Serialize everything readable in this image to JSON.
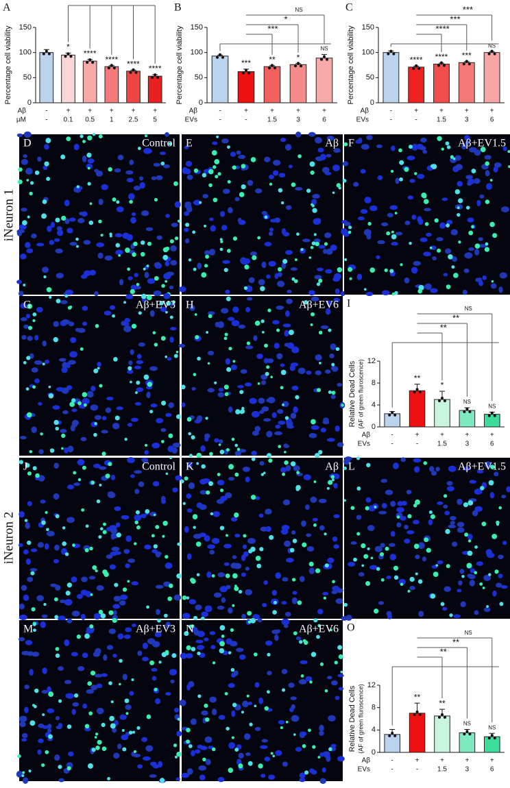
{
  "chart_data": [
    {
      "type": "bar",
      "panel": "A",
      "ylabel": "Percentage cell viability",
      "categories": [
        "-",
        "+",
        "+",
        "+",
        "+",
        "+"
      ],
      "x_rows": [
        {
          "name": "Aβ",
          "labels": [
            "-",
            "+",
            "+",
            "+",
            "+",
            "+"
          ]
        },
        {
          "name": "µM",
          "labels": [
            "-",
            "0.1",
            "0.5",
            "1",
            "2.5",
            "5"
          ]
        }
      ],
      "values": [
        100,
        95,
        83,
        72,
        63,
        53
      ],
      "errors": [
        6,
        4,
        3,
        2,
        2,
        3
      ],
      "colors": [
        "#bcd3ee",
        "#fbd6d6",
        "#f7a9a9",
        "#f27a7a",
        "#ee4545",
        "#e82020"
      ],
      "bar_annotations": [
        null,
        "*",
        "****",
        "****",
        "****",
        "****"
      ],
      "ylim": [
        0,
        150
      ],
      "yticks": [
        0,
        50,
        100,
        150
      ]
    },
    {
      "type": "bar",
      "panel": "B",
      "ylabel": "Percentage cell viability",
      "categories": [
        "-",
        "+",
        "+",
        "+",
        "+"
      ],
      "x_rows": [
        {
          "name": "Aβ",
          "labels": [
            "-",
            "+",
            "+",
            "+",
            "+"
          ]
        },
        {
          "name": "EVs",
          "labels": [
            "-",
            "-",
            "1.5",
            "3",
            "6"
          ]
        }
      ],
      "values": [
        93,
        62,
        72,
        76,
        89
      ],
      "errors": [
        2,
        5,
        2,
        2,
        7
      ],
      "colors": [
        "#bcd3ee",
        "#ee1111",
        "#f26060",
        "#f58a8a",
        "#f7a9a9"
      ],
      "bar_annotations": [
        null,
        "***",
        "**",
        "*",
        "NS"
      ],
      "bracket_labels": [
        "NS",
        "*",
        "***"
      ],
      "ylim": [
        0,
        150
      ],
      "yticks": [
        0,
        50,
        100,
        150
      ]
    },
    {
      "type": "bar",
      "panel": "C",
      "ylabel": "Percentage cell viability",
      "categories": [
        "-",
        "+",
        "+",
        "+",
        "+"
      ],
      "x_rows": [
        {
          "name": "Aβ",
          "labels": [
            "-",
            "+",
            "+",
            "+",
            "+"
          ]
        },
        {
          "name": "EVs",
          "labels": [
            "-",
            "-",
            "1.5",
            "3",
            "6"
          ]
        }
      ],
      "values": [
        100,
        71,
        77,
        80,
        100
      ],
      "errors": [
        3,
        2,
        2,
        2,
        2
      ],
      "colors": [
        "#bcd3ee",
        "#ee2222",
        "#f24d4d",
        "#f57878",
        "#f7a5a5"
      ],
      "bar_annotations": [
        null,
        "****",
        "****",
        "***",
        "NS"
      ],
      "bracket_labels": [
        "***",
        "***",
        "****"
      ],
      "ylim": [
        0,
        150
      ],
      "yticks": [
        0,
        50,
        100,
        150
      ]
    },
    {
      "type": "bar",
      "panel": "I",
      "ylabel": "Relative Dead Cells",
      "ylabel2": "(AF of  green fluroscence)",
      "categories": [
        "-",
        "+",
        "+",
        "+",
        "+"
      ],
      "x_rows": [
        {
          "name": "Aβ",
          "labels": [
            "-",
            "+",
            "+",
            "+",
            "+"
          ]
        },
        {
          "name": "EVs",
          "labels": [
            "-",
            "-",
            "1.5",
            "3",
            "6"
          ]
        }
      ],
      "values": [
        2.4,
        6.6,
        5.0,
        3.0,
        2.3
      ],
      "errors": [
        0.4,
        1.2,
        1.5,
        0.5,
        0.4
      ],
      "colors": [
        "#bcd3ee",
        "#ee1111",
        "#c9f5df",
        "#7fe9c0",
        "#3ddc9a"
      ],
      "bar_annotations": [
        null,
        "**",
        "*",
        "NS",
        "NS"
      ],
      "bracket_labels": [
        "NS",
        "**",
        "**"
      ],
      "ylim": [
        0,
        12
      ],
      "yticks": [
        0,
        4,
        8,
        12
      ]
    },
    {
      "type": "bar",
      "panel": "O",
      "ylabel": "Relative Dead Cells",
      "ylabel2": "(AF of  green fluroscence)",
      "categories": [
        "-",
        "+",
        "+",
        "+",
        "+"
      ],
      "x_rows": [
        {
          "name": "Aβ",
          "labels": [
            "-",
            "+",
            "+",
            "+",
            "+"
          ]
        },
        {
          "name": "EVs",
          "labels": [
            "-",
            "-",
            "1.5",
            "3",
            "6"
          ]
        }
      ],
      "values": [
        3.2,
        7.0,
        6.5,
        3.5,
        2.8
      ],
      "errors": [
        0.9,
        1.8,
        1.2,
        0.6,
        0.6
      ],
      "colors": [
        "#bcd3ee",
        "#ee1111",
        "#c9f5df",
        "#7fe9c0",
        "#3ddc9a"
      ],
      "bar_annotations": [
        null,
        "**",
        "**",
        "NS",
        "NS"
      ],
      "bracket_labels": [
        "NS",
        "**",
        "**"
      ],
      "ylim": [
        0,
        12
      ],
      "yticks": [
        0,
        4,
        8,
        12
      ]
    }
  ],
  "side_labels": [
    "iNeuron 1",
    "iNeuron 2"
  ],
  "image_panels": [
    {
      "panel": "D",
      "label": "Control"
    },
    {
      "panel": "E",
      "label": "Aβ"
    },
    {
      "panel": "F",
      "label": "Aβ+EV1.5"
    },
    {
      "panel": "G",
      "label": "Aβ+EV3"
    },
    {
      "panel": "H",
      "label": "Aβ+EV6"
    },
    {
      "panel": "J",
      "label": "Control"
    },
    {
      "panel": "K",
      "label": "Aβ"
    },
    {
      "panel": "L",
      "label": "Aβ+EV1.5"
    },
    {
      "panel": "M",
      "label": "Aβ+EV3"
    },
    {
      "panel": "N",
      "label": "Aβ+EV6"
    }
  ]
}
